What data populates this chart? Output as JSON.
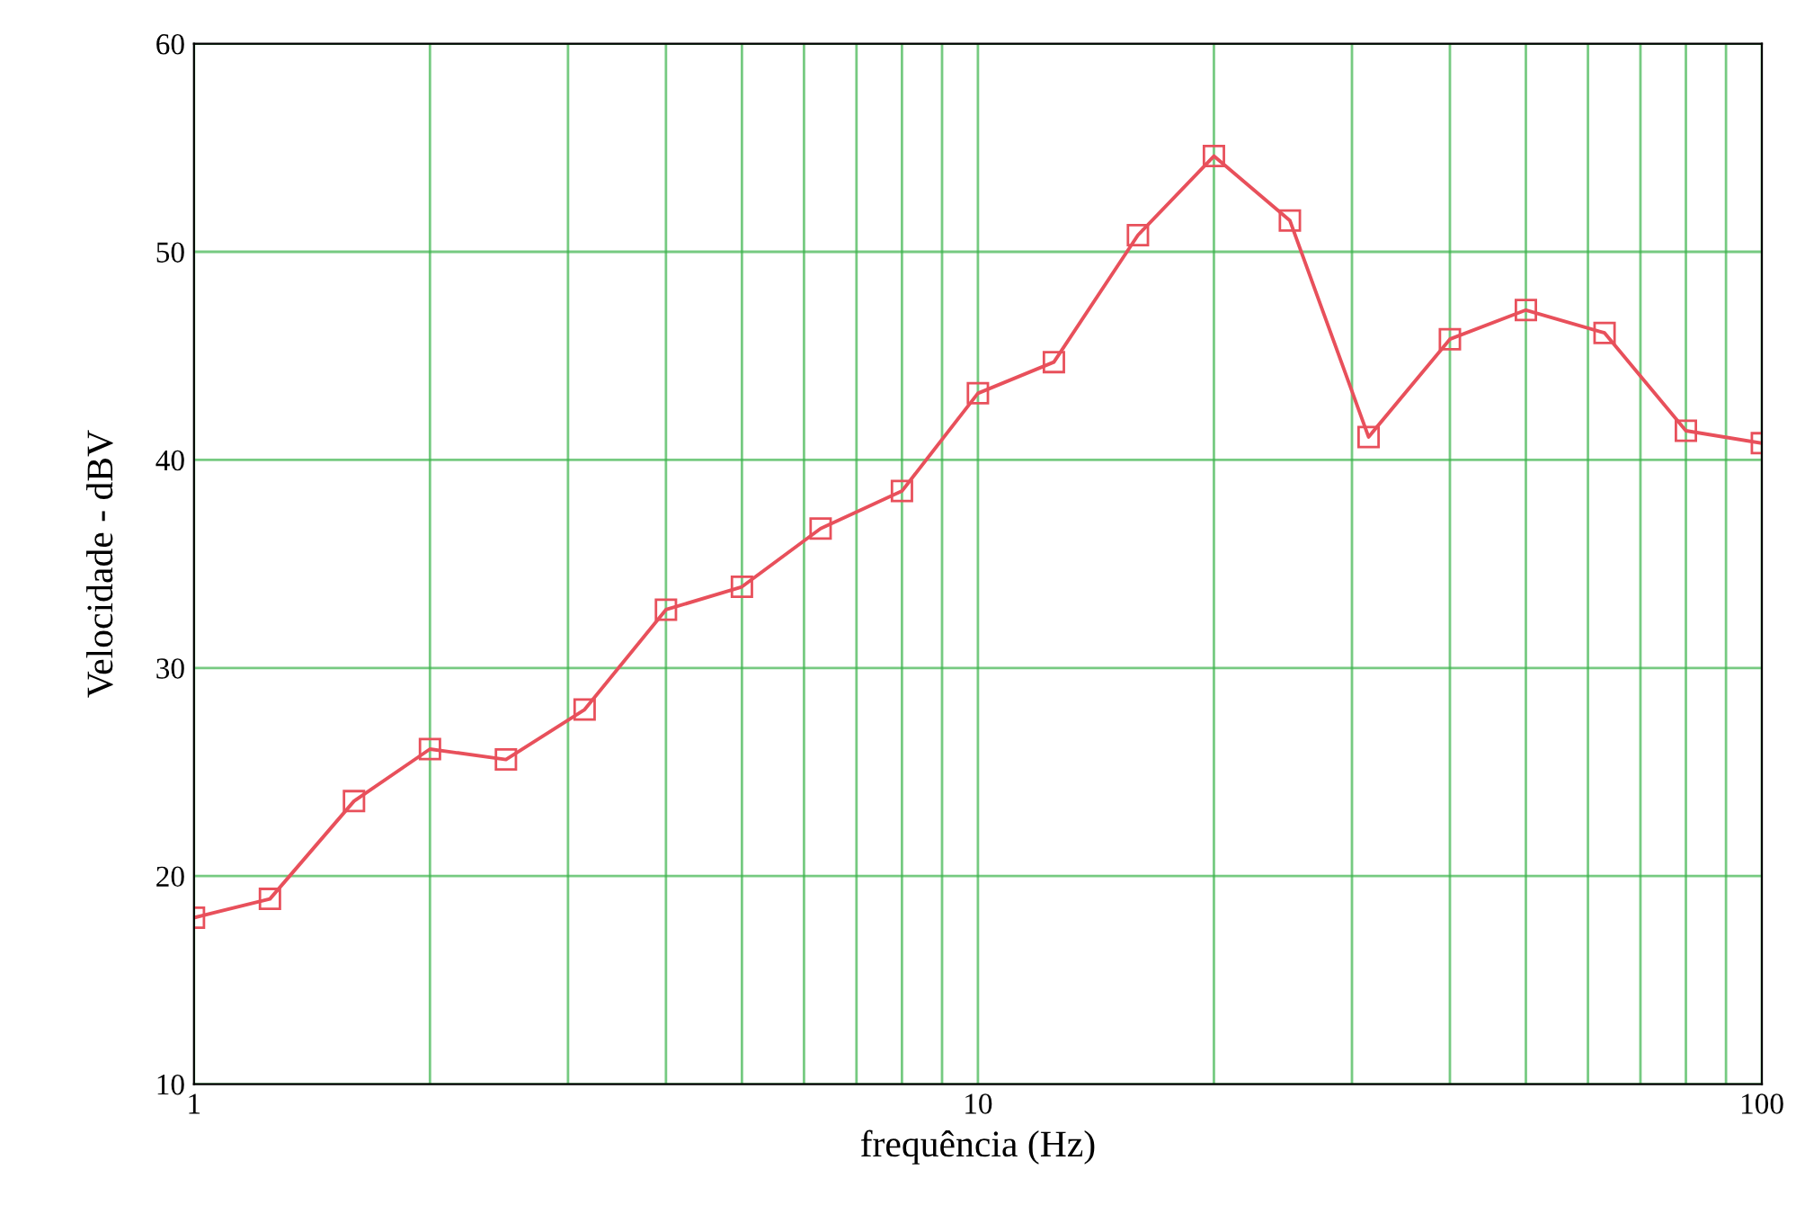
{
  "chart_data": {
    "type": "line",
    "xlabel": "frequência (Hz)",
    "ylabel": "Velocidade - dBV",
    "x": [
      1,
      1.25,
      1.6,
      2,
      2.5,
      3.15,
      4,
      5,
      6.3,
      8,
      10,
      12.5,
      16,
      20,
      25,
      31.5,
      40,
      50,
      63,
      80,
      100
    ],
    "series": [
      {
        "color": "#e8505b",
        "values": [
          18.0,
          18.9,
          23.6,
          26.1,
          25.6,
          28.0,
          32.8,
          33.9,
          36.7,
          38.5,
          43.2,
          44.7,
          50.8,
          54.6,
          51.5,
          41.1,
          45.8,
          47.2,
          46.1,
          41.4,
          40.8
        ]
      }
    ],
    "log": "x",
    "xlim": [
      1,
      100
    ],
    "xticks": [
      1,
      10,
      100
    ],
    "ylim": [
      10,
      60
    ],
    "yticks": [
      10,
      20,
      30,
      40,
      50,
      60
    ],
    "grid": true,
    "marker": "square",
    "line_style": "solid"
  }
}
